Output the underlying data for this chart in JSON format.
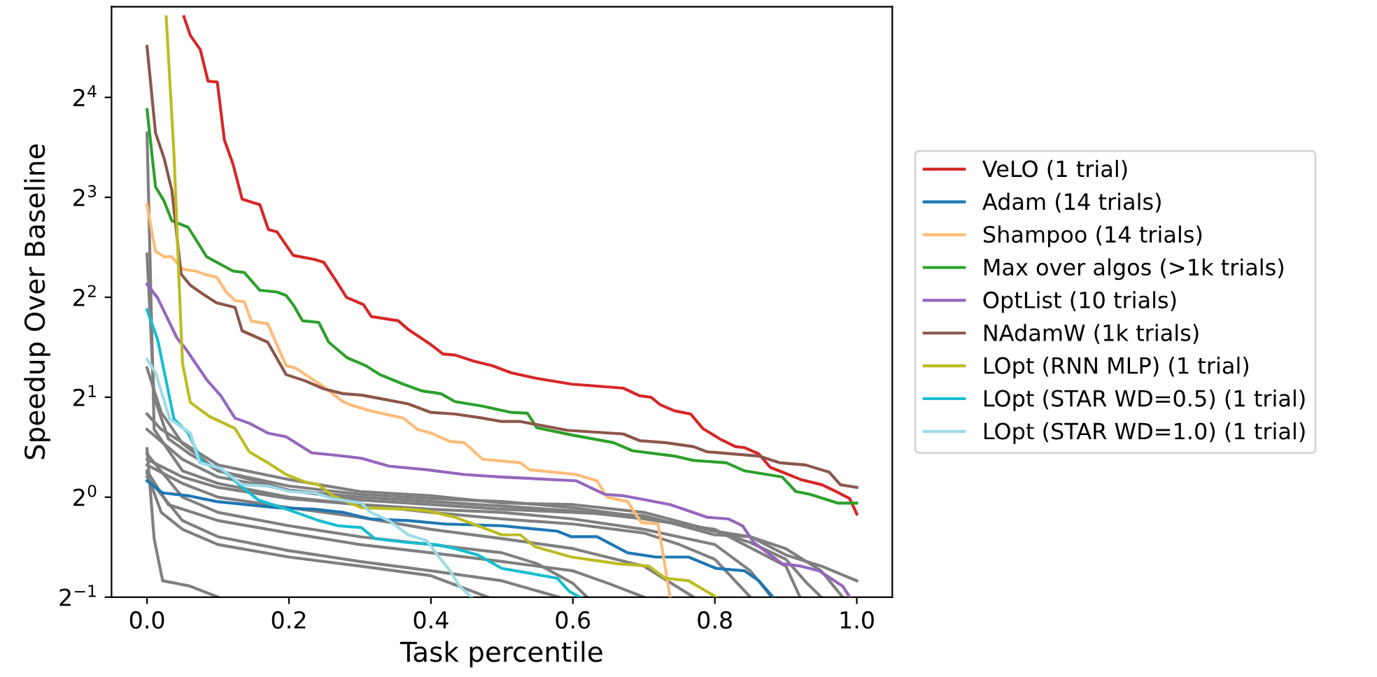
{
  "chart_data": {
    "type": "line",
    "xlabel": "Task percentile",
    "ylabel": "Speedup Over Baseline",
    "log": "y",
    "legend": "right",
    "xlim": [
      -0.05,
      1.05
    ],
    "xticks": [
      {
        "value": 0,
        "label": "0.0"
      },
      0.2,
      0.4,
      0.6,
      0.8,
      {
        "value": 1,
        "label": "1.0"
      }
    ],
    "ylim": [
      0.5,
      30
    ],
    "yticks": [
      {
        "value": 0.5,
        "label": "2$^{−1}$"
      },
      {
        "value": 1,
        "label": "2$^{0}$"
      },
      {
        "value": 2,
        "label": "2$^{1}$"
      },
      {
        "value": 4,
        "label": "2$^{2}$"
      },
      {
        "value": 8,
        "label": "2$^{3}$"
      },
      {
        "value": 16,
        "label": "2$^{4}$"
      }
    ],
    "series": [
      {
        "color": "#7f7f7f",
        "x": [
          0,
          0.02,
          0.05,
          0.1,
          0.2,
          0.3,
          0.4,
          0.5,
          0.6,
          0.7,
          0.8,
          0.85,
          0.9,
          0.95,
          1.0
        ],
        "values": [
          1.78,
          1.6,
          1.46,
          1.25,
          1.13,
          1.04,
          1.01,
          0.96,
          0.95,
          0.9,
          0.79,
          0.76,
          0.67,
          0.62,
          0.56
        ]
      },
      {
        "color": "#7f7f7f",
        "x": [
          0,
          0.05,
          0.1,
          0.2,
          0.3,
          0.4,
          0.5,
          0.6,
          0.7,
          0.8,
          0.85,
          0.9,
          0.95,
          0.98
        ],
        "values": [
          1.6,
          1.3,
          1.15,
          1.05,
          0.98,
          0.95,
          0.92,
          0.9,
          0.88,
          0.77,
          0.76,
          0.7,
          0.6,
          0.5
        ]
      },
      {
        "color": "#7f7f7f",
        "x": [
          0,
          0.05,
          0.1,
          0.2,
          0.3,
          0.4,
          0.5,
          0.6,
          0.7,
          0.75,
          0.8,
          0.85
        ],
        "values": [
          1.3,
          1.15,
          1.07,
          0.99,
          0.95,
          0.9,
          0.86,
          0.83,
          0.78,
          0.72,
          0.65,
          0.5
        ]
      },
      {
        "color": "#7f7f7f",
        "x": [
          0,
          0.05,
          0.1,
          0.2,
          0.3,
          0.4,
          0.5,
          0.6,
          0.7,
          0.77
        ],
        "values": [
          1.25,
          1.1,
          1.0,
          0.93,
          0.87,
          0.8,
          0.75,
          0.7,
          0.62,
          0.5
        ]
      },
      {
        "color": "#7f7f7f",
        "x": [
          0,
          0.03,
          0.1,
          0.2,
          0.3,
          0.4,
          0.5,
          0.6,
          0.65,
          0.7
        ],
        "values": [
          1.2,
          0.95,
          0.85,
          0.78,
          0.72,
          0.68,
          0.64,
          0.6,
          0.55,
          0.5
        ]
      },
      {
        "color": "#7f7f7f",
        "x": [
          0,
          0.02,
          0.05,
          0.1,
          0.2,
          0.3,
          0.4,
          0.48
        ],
        "values": [
          1.18,
          0.9,
          0.8,
          0.72,
          0.66,
          0.62,
          0.58,
          0.5
        ]
      },
      {
        "color": "#7f7f7f",
        "x": [
          0,
          0.05,
          0.1,
          0.2,
          0.3,
          0.4,
          0.5,
          0.58
        ],
        "values": [
          1.15,
          0.85,
          0.76,
          0.69,
          0.64,
          0.6,
          0.56,
          0.5
        ]
      },
      {
        "color": "#7f7f7f",
        "x": [
          0,
          0.01,
          0.022,
          0.06,
          0.1
        ],
        "values": [
          1.4,
          0.75,
          0.56,
          0.54,
          0.5
        ]
      },
      {
        "color": "#7f7f7f",
        "x": [
          0,
          0.01,
          0.05,
          0.1,
          0.2,
          0.3,
          0.4,
          0.5,
          0.6,
          0.7,
          0.8,
          0.85,
          0.88
        ],
        "values": [
          12.5,
          1.6,
          1.2,
          1.1,
          1.0,
          0.95,
          0.92,
          0.9,
          0.86,
          0.8,
          0.72,
          0.6,
          0.5
        ]
      },
      {
        "color": "#7f7f7f",
        "x": [
          0,
          0.01,
          0.03,
          0.06,
          0.1,
          0.2,
          0.3,
          0.4,
          0.5,
          0.6,
          0.7,
          0.8,
          0.9,
          0.92
        ],
        "values": [
          5.4,
          2.0,
          1.5,
          1.35,
          1.2,
          1.05,
          1.0,
          0.97,
          0.94,
          0.91,
          0.86,
          0.8,
          0.62,
          0.5
        ]
      },
      {
        "color": "#7f7f7f",
        "x": [
          0,
          0.02,
          0.05,
          0.1,
          0.2,
          0.3,
          0.4,
          0.5,
          0.6,
          0.7,
          0.8,
          0.85,
          0.9,
          0.93,
          0.95
        ],
        "values": [
          2.45,
          1.8,
          1.45,
          1.2,
          1.08,
          1.02,
          0.99,
          0.97,
          0.93,
          0.87,
          0.79,
          0.73,
          0.65,
          0.55,
          0.5
        ]
      },
      {
        "color": "#7f7f7f",
        "x": [
          0,
          0.05,
          0.1,
          0.2,
          0.3,
          0.4,
          0.5,
          0.55,
          0.6,
          0.62
        ],
        "values": [
          1.35,
          1.0,
          0.9,
          0.82,
          0.76,
          0.72,
          0.68,
          0.63,
          0.55,
          0.5
        ]
      },
      {
        "name": "VeLO (1 trial)",
        "color": "#d62728",
        "x": [
          0.052,
          0.061,
          0.075,
          0.086,
          0.099,
          0.109,
          0.121,
          0.134,
          0.159,
          0.171,
          0.183,
          0.206,
          0.236,
          0.249,
          0.266,
          0.281,
          0.305,
          0.316,
          0.354,
          0.368,
          0.4,
          0.417,
          0.434,
          0.46,
          0.486,
          0.513,
          0.549,
          0.598,
          0.671,
          0.694,
          0.71,
          0.723,
          0.743,
          0.766,
          0.783,
          0.809,
          0.829,
          0.842,
          0.862,
          0.878,
          0.895,
          0.921,
          0.951,
          0.971,
          0.99,
          1.0
        ],
        "values": [
          28,
          24.6,
          22.3,
          17.9,
          17.8,
          11.9,
          10.1,
          7.9,
          7.6,
          6.4,
          6.3,
          5.35,
          5.2,
          5.1,
          4.5,
          4.0,
          3.8,
          3.5,
          3.4,
          3.2,
          2.88,
          2.7,
          2.68,
          2.57,
          2.49,
          2.37,
          2.28,
          2.19,
          2.13,
          2.02,
          2.0,
          1.9,
          1.82,
          1.78,
          1.61,
          1.49,
          1.42,
          1.41,
          1.35,
          1.23,
          1.19,
          1.13,
          1.09,
          1.04,
          0.99,
          0.89
        ]
      },
      {
        "name": "Adam (14 trials)",
        "color": "#1f77b4",
        "x": [
          0,
          0.022,
          0.058,
          0.098,
          0.183,
          0.236,
          0.276,
          0.315,
          0.368,
          0.42,
          0.5,
          0.578,
          0.598,
          0.634,
          0.677,
          0.717,
          0.763,
          0.802,
          0.842,
          0.862,
          0.882
        ],
        "values": [
          1.12,
          1.03,
          1.01,
          0.97,
          0.93,
          0.92,
          0.9,
          0.86,
          0.85,
          0.83,
          0.82,
          0.79,
          0.76,
          0.76,
          0.68,
          0.66,
          0.66,
          0.61,
          0.6,
          0.56,
          0.5
        ]
      },
      {
        "name": "Shampoo (14 trials)",
        "color": "#ffbb78",
        "x": [
          0,
          0.012,
          0.024,
          0.035,
          0.05,
          0.068,
          0.084,
          0.098,
          0.111,
          0.124,
          0.137,
          0.147,
          0.17,
          0.196,
          0.209,
          0.249,
          0.276,
          0.289,
          0.315,
          0.361,
          0.381,
          0.4,
          0.427,
          0.447,
          0.473,
          0.526,
          0.539,
          0.605,
          0.634,
          0.648,
          0.677,
          0.696,
          0.72,
          0.737
        ],
        "values": [
          7.6,
          5.5,
          5.3,
          5.3,
          4.86,
          4.8,
          4.67,
          4.6,
          4.17,
          3.91,
          3.88,
          3.39,
          3.33,
          2.49,
          2.45,
          2.15,
          1.94,
          1.89,
          1.82,
          1.73,
          1.6,
          1.56,
          1.47,
          1.46,
          1.3,
          1.27,
          1.21,
          1.17,
          1.12,
          1.0,
          0.97,
          0.84,
          0.83,
          0.5
        ]
      },
      {
        "name": "Max over algos (>1k trials)",
        "color": "#2ca02c",
        "x": [
          0,
          0.012,
          0.024,
          0.035,
          0.058,
          0.084,
          0.121,
          0.137,
          0.159,
          0.183,
          0.196,
          0.206,
          0.219,
          0.242,
          0.256,
          0.282,
          0.308,
          0.328,
          0.361,
          0.387,
          0.414,
          0.434,
          0.473,
          0.513,
          0.536,
          0.549,
          0.598,
          0.657,
          0.684,
          0.743,
          0.77,
          0.816,
          0.842,
          0.895,
          0.914,
          0.934,
          0.973,
          1.0
        ],
        "values": [
          14.7,
          8.6,
          7.8,
          6.8,
          6.5,
          5.3,
          4.8,
          4.75,
          4.2,
          4.15,
          4.05,
          3.8,
          3.4,
          3.36,
          2.93,
          2.63,
          2.49,
          2.34,
          2.19,
          2.09,
          2.05,
          1.94,
          1.88,
          1.8,
          1.79,
          1.62,
          1.54,
          1.46,
          1.38,
          1.33,
          1.29,
          1.27,
          1.2,
          1.15,
          1.04,
          1.02,
          0.96,
          0.96
        ]
      },
      {
        "name": "OptList (10 trials)",
        "color": "#9467bd",
        "x": [
          0,
          0.015,
          0.042,
          0.055,
          0.084,
          0.104,
          0.124,
          0.144,
          0.17,
          0.196,
          0.209,
          0.232,
          0.262,
          0.302,
          0.341,
          0.394,
          0.447,
          0.5,
          0.605,
          0.645,
          0.671,
          0.737,
          0.789,
          0.819,
          0.839,
          0.855,
          0.895,
          0.921,
          0.947,
          0.98,
          0.99
        ],
        "values": [
          4.38,
          3.98,
          3.02,
          2.79,
          2.26,
          2.02,
          1.73,
          1.67,
          1.56,
          1.52,
          1.46,
          1.36,
          1.34,
          1.31,
          1.24,
          1.21,
          1.17,
          1.15,
          1.12,
          1.02,
          1.01,
          0.95,
          0.87,
          0.86,
          0.82,
          0.73,
          0.63,
          0.62,
          0.6,
          0.54,
          0.5
        ]
      },
      {
        "name": "NAdamW (1k trials)",
        "color": "#8c564b",
        "x": [
          0,
          0.012,
          0.024,
          0.035,
          0.048,
          0.061,
          0.078,
          0.098,
          0.124,
          0.134,
          0.17,
          0.196,
          0.223,
          0.249,
          0.276,
          0.302,
          0.335,
          0.368,
          0.4,
          0.434,
          0.473,
          0.5,
          0.526,
          0.592,
          0.671,
          0.694,
          0.73,
          0.77,
          0.789,
          0.862,
          0.891,
          0.928,
          0.961,
          0.977,
          1.0
        ],
        "values": [
          22.8,
          12.5,
          10.5,
          8.4,
          4.7,
          4.35,
          4.1,
          3.85,
          3.73,
          3.17,
          2.93,
          2.34,
          2.24,
          2.12,
          2.05,
          2.03,
          1.97,
          1.91,
          1.8,
          1.78,
          1.73,
          1.69,
          1.69,
          1.59,
          1.55,
          1.48,
          1.46,
          1.42,
          1.37,
          1.33,
          1.27,
          1.25,
          1.19,
          1.09,
          1.07
        ]
      },
      {
        "name": "LOpt (RNN MLP) (1 trial)",
        "color": "#bcbd22",
        "x": [
          0.027,
          0.038,
          0.045,
          0.05,
          0.061,
          0.088,
          0.124,
          0.144,
          0.17,
          0.196,
          0.223,
          0.242,
          0.262,
          0.302,
          0.368,
          0.394,
          0.434,
          0.466,
          0.5,
          0.526,
          0.546,
          0.598,
          0.664,
          0.707,
          0.73,
          0.763,
          0.802
        ],
        "values": [
          28,
          10.8,
          4.53,
          2.53,
          1.93,
          1.75,
          1.61,
          1.37,
          1.27,
          1.17,
          1.11,
          1.09,
          1.01,
          0.93,
          0.92,
          0.91,
          0.87,
          0.82,
          0.77,
          0.77,
          0.71,
          0.66,
          0.63,
          0.62,
          0.57,
          0.56,
          0.5
        ]
      },
      {
        "name": "LOpt (STAR WD=0.5) (1 trial)",
        "color": "#17becf",
        "x": [
          0,
          0.015,
          0.038,
          0.058,
          0.078,
          0.104,
          0.137,
          0.157,
          0.19,
          0.216,
          0.242,
          0.269,
          0.302,
          0.321,
          0.368,
          0.407,
          0.434,
          0.466,
          0.5,
          0.539,
          0.578,
          0.595,
          0.61
        ],
        "values": [
          3.67,
          2.98,
          1.72,
          1.56,
          1.27,
          1.22,
          1.06,
          0.98,
          0.93,
          0.89,
          0.85,
          0.82,
          0.81,
          0.75,
          0.73,
          0.72,
          0.7,
          0.67,
          0.61,
          0.59,
          0.57,
          0.52,
          0.5
        ]
      },
      {
        "name": "LOpt (STAR WD=1.0) (1 trial)",
        "color": "#9edae5",
        "x": [
          0,
          0.012,
          0.032,
          0.061,
          0.074,
          0.104,
          0.134,
          0.17,
          0.202,
          0.236,
          0.262,
          0.302,
          0.315,
          0.341,
          0.368,
          0.394,
          0.414,
          0.427,
          0.44,
          0.457
        ],
        "values": [
          2.6,
          2.37,
          1.72,
          1.56,
          1.27,
          1.22,
          1.09,
          1.08,
          1.04,
          1.03,
          0.99,
          0.96,
          0.9,
          0.85,
          0.77,
          0.74,
          0.65,
          0.6,
          0.54,
          0.5
        ]
      }
    ]
  }
}
